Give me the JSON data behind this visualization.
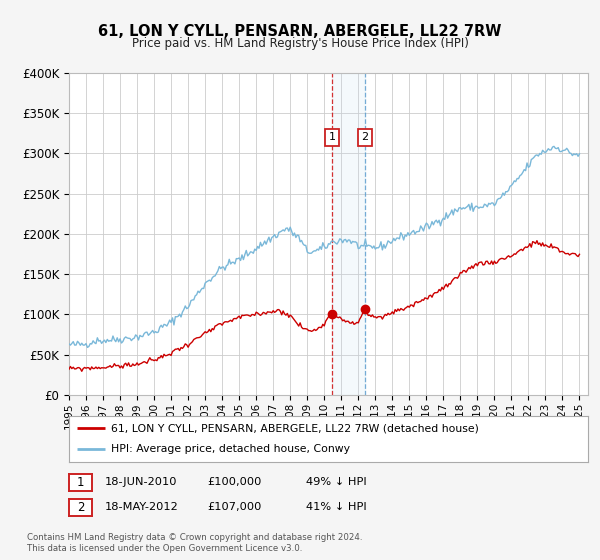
{
  "title": "61, LON Y CYLL, PENSARN, ABERGELE, LL22 7RW",
  "subtitle": "Price paid vs. HM Land Registry's House Price Index (HPI)",
  "legend_line1": "61, LON Y CYLL, PENSARN, ABERGELE, LL22 7RW (detached house)",
  "legend_line2": "HPI: Average price, detached house, Conwy",
  "footnote1": "Contains HM Land Registry data © Crown copyright and database right 2024.",
  "footnote2": "This data is licensed under the Open Government Licence v3.0.",
  "hpi_color": "#7ab8d9",
  "price_color": "#cc0000",
  "sale1_x": 2010.458,
  "sale1_y": 100000,
  "sale2_x": 2012.375,
  "sale2_y": 107000,
  "ylim": [
    0,
    400000
  ],
  "yticks": [
    0,
    50000,
    100000,
    150000,
    200000,
    250000,
    300000,
    350000,
    400000
  ],
  "xlim_min": 1995,
  "xlim_max": 2025.5,
  "background_color": "#f5f5f5",
  "plot_bg_color": "#ffffff",
  "grid_color": "#cccccc",
  "hpi_anchors": [
    [
      1995.0,
      62000
    ],
    [
      1996.0,
      63000
    ],
    [
      1996.5,
      67000
    ],
    [
      1997.0,
      67500
    ],
    [
      1998.0,
      69000
    ],
    [
      1999.0,
      72000
    ],
    [
      2000.0,
      78000
    ],
    [
      2001.0,
      90000
    ],
    [
      2002.0,
      110000
    ],
    [
      2003.0,
      138000
    ],
    [
      2004.0,
      158000
    ],
    [
      2005.0,
      168000
    ],
    [
      2006.0,
      182000
    ],
    [
      2007.0,
      196000
    ],
    [
      2007.8,
      207000
    ],
    [
      2008.5,
      195000
    ],
    [
      2009.0,
      178000
    ],
    [
      2009.5,
      178000
    ],
    [
      2010.0,
      183000
    ],
    [
      2010.5,
      190000
    ],
    [
      2011.0,
      192000
    ],
    [
      2011.5,
      192000
    ],
    [
      2012.0,
      185000
    ],
    [
      2012.5,
      183000
    ],
    [
      2013.0,
      183000
    ],
    [
      2013.5,
      185000
    ],
    [
      2014.0,
      192000
    ],
    [
      2015.0,
      200000
    ],
    [
      2016.0,
      208000
    ],
    [
      2017.0,
      220000
    ],
    [
      2018.0,
      232000
    ],
    [
      2019.0,
      233000
    ],
    [
      2020.0,
      237000
    ],
    [
      2021.0,
      258000
    ],
    [
      2022.0,
      285000
    ],
    [
      2022.5,
      298000
    ],
    [
      2023.0,
      303000
    ],
    [
      2023.5,
      308000
    ],
    [
      2024.0,
      305000
    ],
    [
      2024.5,
      300000
    ],
    [
      2025.0,
      298000
    ]
  ],
  "prop_anchors": [
    [
      1995.0,
      32000
    ],
    [
      1996.0,
      33000
    ],
    [
      1997.0,
      34000
    ],
    [
      1998.0,
      36000
    ],
    [
      1999.0,
      38000
    ],
    [
      2000.0,
      43000
    ],
    [
      2001.0,
      52000
    ],
    [
      2002.0,
      63000
    ],
    [
      2003.0,
      76000
    ],
    [
      2004.0,
      88000
    ],
    [
      2005.0,
      96000
    ],
    [
      2006.0,
      100000
    ],
    [
      2007.0,
      104000
    ],
    [
      2007.5,
      104000
    ],
    [
      2008.0,
      98000
    ],
    [
      2008.5,
      87000
    ],
    [
      2009.0,
      80000
    ],
    [
      2009.5,
      80000
    ],
    [
      2010.0,
      90000
    ],
    [
      2010.458,
      100000
    ],
    [
      2011.0,
      96000
    ],
    [
      2011.5,
      88000
    ],
    [
      2012.0,
      90000
    ],
    [
      2012.375,
      107000
    ],
    [
      2012.6,
      100000
    ],
    [
      2013.0,
      95000
    ],
    [
      2013.5,
      97000
    ],
    [
      2014.0,
      102000
    ],
    [
      2015.0,
      110000
    ],
    [
      2016.0,
      120000
    ],
    [
      2017.0,
      132000
    ],
    [
      2018.0,
      148000
    ],
    [
      2018.5,
      157000
    ],
    [
      2019.0,
      163000
    ],
    [
      2020.0,
      165000
    ],
    [
      2021.0,
      173000
    ],
    [
      2022.0,
      185000
    ],
    [
      2022.5,
      189000
    ],
    [
      2023.0,
      185000
    ],
    [
      2023.5,
      183000
    ],
    [
      2024.0,
      177000
    ],
    [
      2024.5,
      175000
    ],
    [
      2025.0,
      174000
    ]
  ]
}
